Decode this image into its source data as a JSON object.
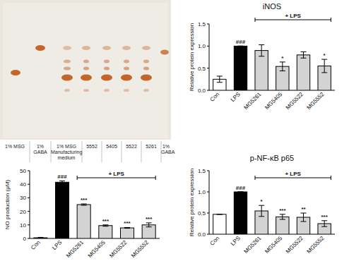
{
  "image": {
    "lane_labels": [
      "1% MSG",
      "1% GABA",
      "1% MSG Manufacturing medium",
      "5552",
      "5405",
      "5522",
      "5261",
      "1% GABA"
    ]
  },
  "chart_data": [
    {
      "type": "bar",
      "title": "iNOS",
      "y_label": "Relative protein expression",
      "categories": [
        "Con",
        "LPS",
        "MG5261",
        "MG5405",
        "MG5522",
        "MG5552"
      ],
      "values": [
        0.25,
        1.0,
        0.9,
        0.54,
        0.8,
        0.55
      ],
      "errors": [
        0.07,
        0,
        0.13,
        0.1,
        0.07,
        0.15
      ],
      "colors": [
        "#ffffff",
        "#000000",
        "#d3d3d3",
        "#d3d3d3",
        "#d3d3d3",
        "#d3d3d3"
      ],
      "significance": [
        null,
        "###",
        null,
        "*",
        null,
        "*"
      ],
      "bracket_label": "+ LPS",
      "ylim": [
        0,
        1.5
      ],
      "yticks": [
        {
          "value": 0,
          "label": "0.0"
        },
        {
          "value": 0.5,
          "label": "0.5"
        },
        {
          "value": 1,
          "label": "1.0"
        },
        {
          "value": 1.5,
          "label": "1.5"
        }
      ]
    },
    {
      "type": "bar",
      "y_label": "NO production (μM)",
      "categories": [
        "Con",
        "LPS",
        "MG5261",
        "MG5405",
        "MG5522",
        "MG5552"
      ],
      "values": [
        0.5,
        41.5,
        25,
        9.5,
        7.8,
        10
      ],
      "errors": [
        0.3,
        1,
        0.5,
        0.5,
        0.3,
        1.5
      ],
      "colors": [
        "#ffffff",
        "#000000",
        "#d3d3d3",
        "#d3d3d3",
        "#d3d3d3",
        "#d3d3d3"
      ],
      "significance": [
        null,
        "###",
        "***",
        "***",
        "***",
        "***"
      ],
      "bracket_label": "+ LPS",
      "ylim": [
        0,
        50
      ],
      "yticks": [
        0,
        10,
        20,
        30,
        40,
        50
      ]
    },
    {
      "type": "bar",
      "title": "p-NF-κB p65",
      "y_label": "Relative protein expression",
      "categories": [
        "Con",
        "LPS",
        "MG5261",
        "MG5405",
        "MG5522",
        "MG5552"
      ],
      "values": [
        0.47,
        1.0,
        0.55,
        0.41,
        0.4,
        0.25
      ],
      "errors": [
        0,
        0,
        0.13,
        0.06,
        0.1,
        0.07
      ],
      "colors": [
        "#ffffff",
        "#000000",
        "#d3d3d3",
        "#d3d3d3",
        "#d3d3d3",
        "#d3d3d3"
      ],
      "significance": [
        null,
        "###",
        "*",
        "***",
        "**",
        "***"
      ],
      "bracket_label": "+ LPS",
      "ylim": [
        0,
        1.5
      ],
      "yticks": [
        {
          "value": 0,
          "label": "0.0"
        },
        {
          "value": 0.5,
          "label": "0.5"
        },
        {
          "value": 1,
          "label": "1.0"
        },
        {
          "value": 1.5,
          "label": "1.5"
        }
      ]
    }
  ]
}
